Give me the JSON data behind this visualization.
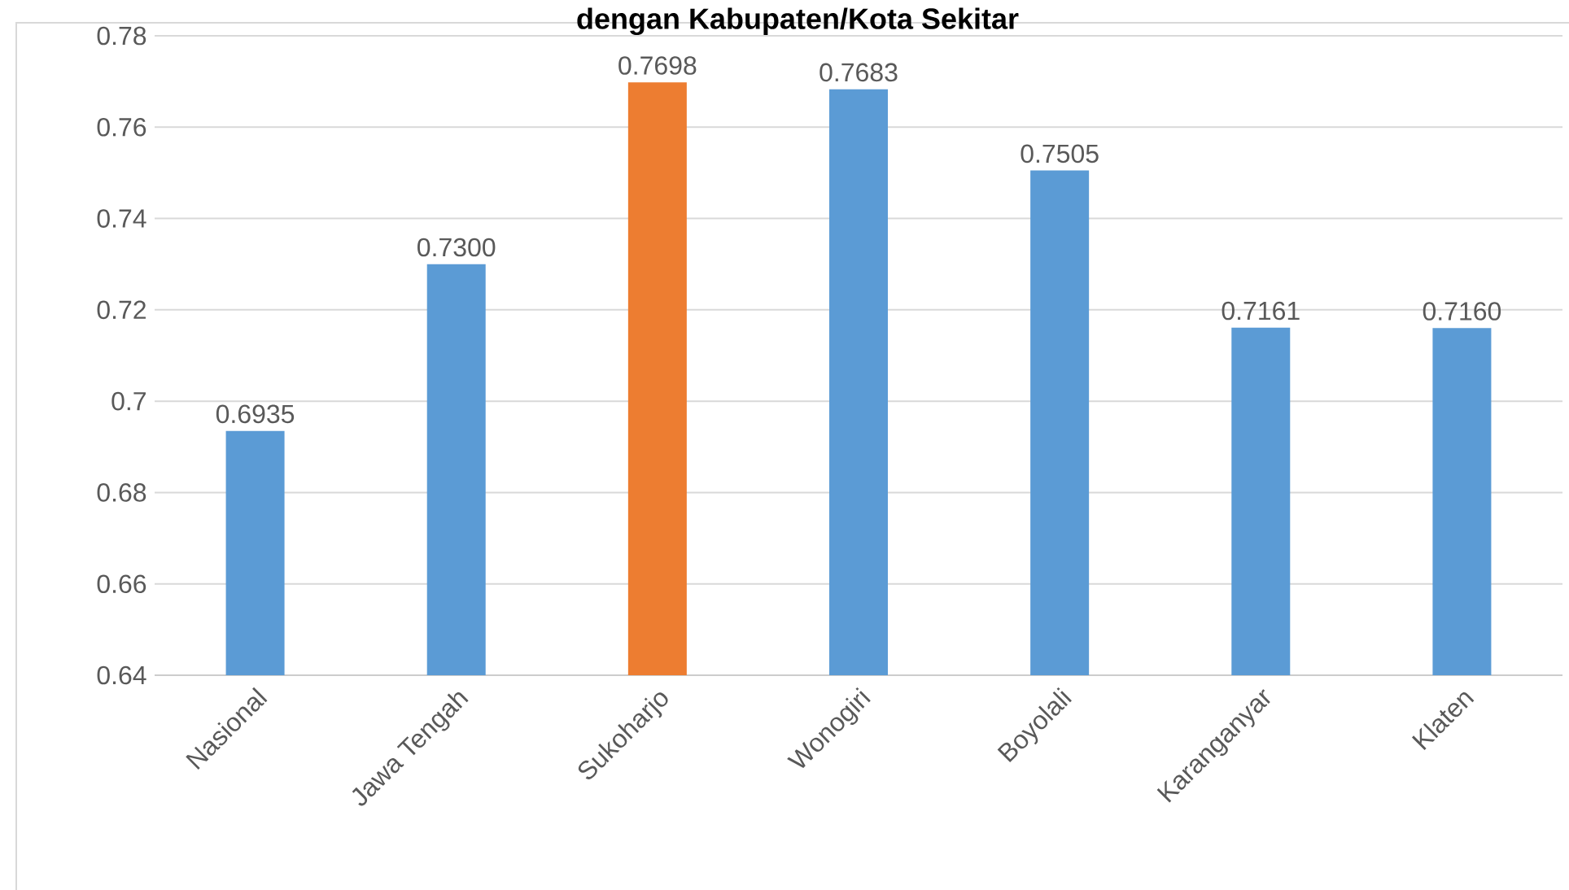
{
  "chart_data": {
    "type": "bar",
    "title": "dengan Kabupaten/Kota Sekitar",
    "categories": [
      "Nasional",
      "Jawa Tengah",
      "Sukoharjo",
      "Wonogiri",
      "Boyolali",
      "Karanganyar",
      "Klaten"
    ],
    "values": [
      0.6935,
      0.73,
      0.7698,
      0.7683,
      0.7505,
      0.7161,
      0.716
    ],
    "value_labels": [
      "0.6935",
      "0.7300",
      "0.7698",
      "0.7683",
      "0.7505",
      "0.7161",
      "0.7160"
    ],
    "colors": [
      "#5b9bd5",
      "#5b9bd5",
      "#ed7d31",
      "#5b9bd5",
      "#5b9bd5",
      "#5b9bd5",
      "#5b9bd5"
    ],
    "ylim": [
      0.64,
      0.78
    ],
    "yticks": [
      0.64,
      0.66,
      0.68,
      0.7,
      0.72,
      0.74,
      0.76,
      0.78
    ],
    "grid": "y"
  }
}
